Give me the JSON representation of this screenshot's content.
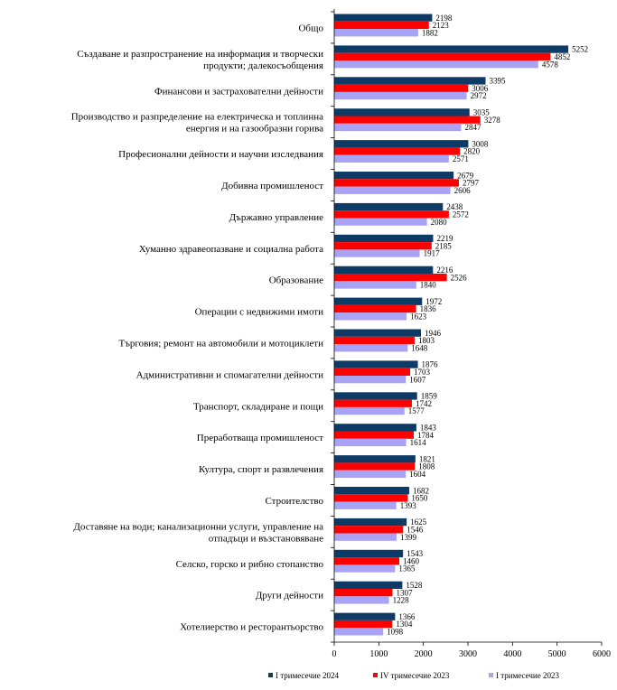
{
  "chart_data": {
    "type": "bar",
    "orientation": "horizontal",
    "xlim": [
      0,
      6000
    ],
    "xticks": [
      0,
      1000,
      2000,
      3000,
      4000,
      5000,
      6000
    ],
    "grid": false,
    "legend_position": "bottom",
    "categories": [
      [
        "Общо"
      ],
      [
        "Създаване и разпространение на информация и творчески",
        "продукти; далекосъобщения"
      ],
      [
        "Финансови и застрахователни дейности"
      ],
      [
        "Производство и разпределение на електрическа и топлинна",
        "енергия и на газообразни горива"
      ],
      [
        "Професионални дейности и научни изследвания"
      ],
      [
        "Добивна промишленост"
      ],
      [
        "Държавно управление"
      ],
      [
        "Хуманно здравеопазване и социална работа"
      ],
      [
        "Образование"
      ],
      [
        "Операции с недвижими имоти"
      ],
      [
        "Търговия; ремонт на автомобили и мотоциклети"
      ],
      [
        "Административни и спомагателни дейности"
      ],
      [
        "Транспорт, складиране и пощи"
      ],
      [
        "Преработваща промишленост"
      ],
      [
        "Култура, спорт и развлечения"
      ],
      [
        "Строителство"
      ],
      [
        "Доставяне на води; канализационни услуги, управление на",
        "отпадъци и възстановяване"
      ],
      [
        "Селско, горско и рибно стопанство"
      ],
      [
        "Други дейности"
      ],
      [
        "Хотелиерство и ресторантьорство"
      ]
    ],
    "series": [
      {
        "name": "I тримесечие 2024",
        "color": "#0e3b66",
        "values": [
          2198,
          5252,
          3395,
          3035,
          3008,
          2679,
          2438,
          2219,
          2216,
          1972,
          1946,
          1876,
          1859,
          1843,
          1821,
          1682,
          1625,
          1543,
          1528,
          1366
        ]
      },
      {
        "name": "IV тримесечие 2023",
        "color": "#ff0000",
        "values": [
          2123,
          4852,
          3006,
          3278,
          2820,
          2797,
          2572,
          2185,
          2526,
          1836,
          1803,
          1703,
          1742,
          1784,
          1808,
          1650,
          1546,
          1460,
          1307,
          1304
        ]
      },
      {
        "name": "I тримесечие 2023",
        "color": "#a9a3f5",
        "values": [
          1882,
          4578,
          2972,
          2847,
          2571,
          2606,
          2080,
          1917,
          1840,
          1623,
          1648,
          1607,
          1577,
          1614,
          1604,
          1393,
          1399,
          1365,
          1228,
          1098
        ]
      }
    ]
  }
}
